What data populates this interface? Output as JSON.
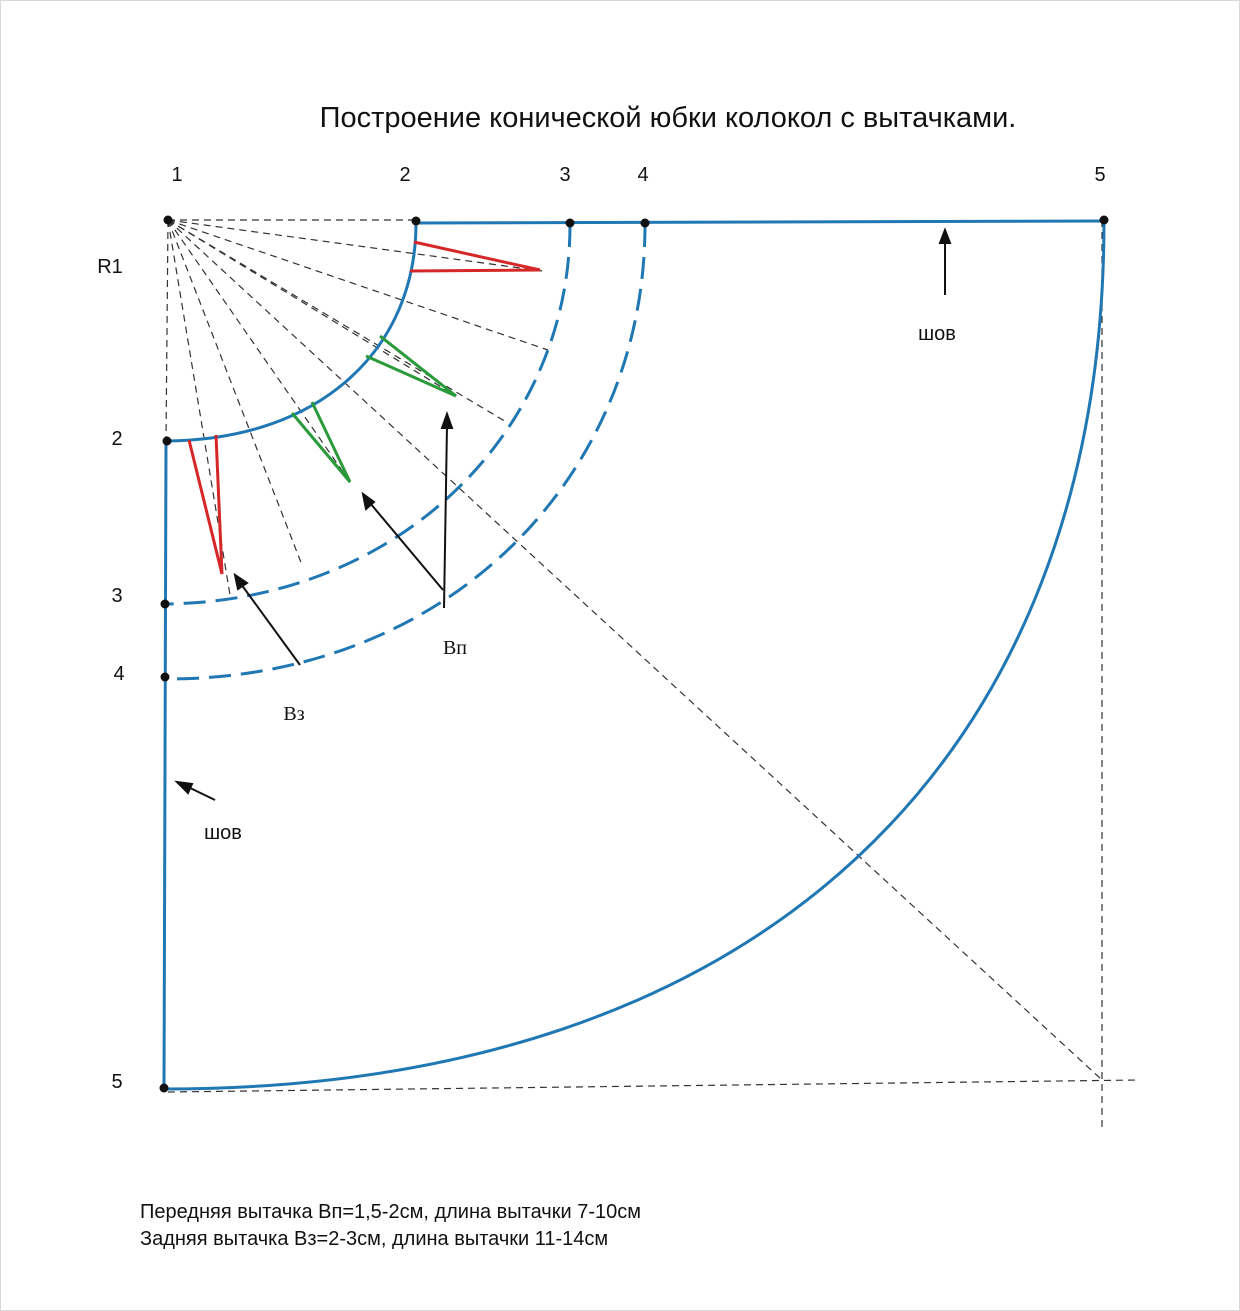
{
  "title": "Построение конической юбки колокол с вытачками.",
  "top_point_labels": [
    "1",
    "2",
    "3",
    "4",
    "5"
  ],
  "left_point_labels": [
    "2",
    "3",
    "4",
    "5"
  ],
  "radius_label": "R1",
  "seam_label_top": "шов",
  "seam_label_left": "шов",
  "front_dart_label": "Вп",
  "back_dart_label": "Вз",
  "notes": {
    "front": "Передняя вытачка Вп=1,5-2см, длина вытачки 7-10см",
    "back": "Задняя вытачка Вз=2-3см, длина вытачки 11-14см"
  },
  "colors": {
    "outline": "#1f77b4",
    "construction": "#333333",
    "front_dart": "#2a9a3a",
    "back_dart": "#d62728",
    "text": "#111111"
  }
}
